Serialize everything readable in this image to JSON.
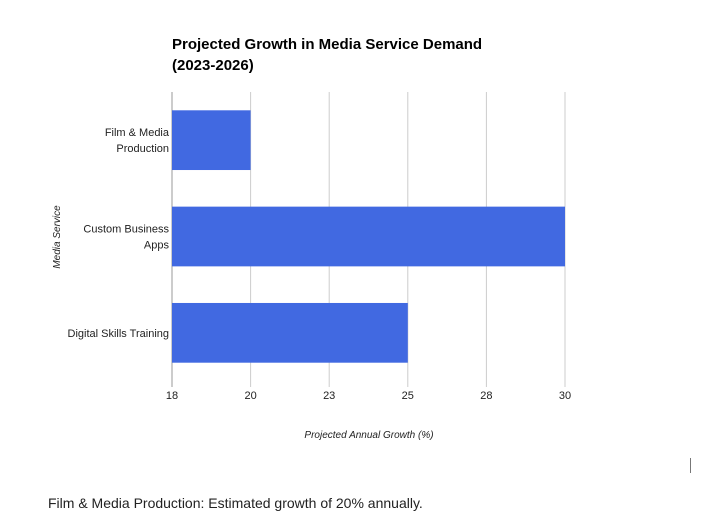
{
  "chart_data": {
    "type": "bar",
    "orientation": "horizontal",
    "title_lines": [
      "Projected Growth in Media Service Demand",
      "(2023-2026)"
    ],
    "xlabel": "Projected Annual Growth (%)",
    "ylabel": "Media Service",
    "categories": [
      [
        "Film & Media",
        "Production"
      ],
      [
        "Custom Business",
        "Apps"
      ],
      [
        "Digital Skills Training"
      ]
    ],
    "values": [
      20,
      30,
      25
    ],
    "xlim": [
      18,
      30
    ],
    "x_ticks": [
      "18",
      "20",
      "23",
      "25",
      "28",
      "30"
    ],
    "grid": true,
    "legend": "none",
    "bar_color": "#4169e1"
  },
  "caption": "Film & Media Production: Estimated growth of 20% annually."
}
